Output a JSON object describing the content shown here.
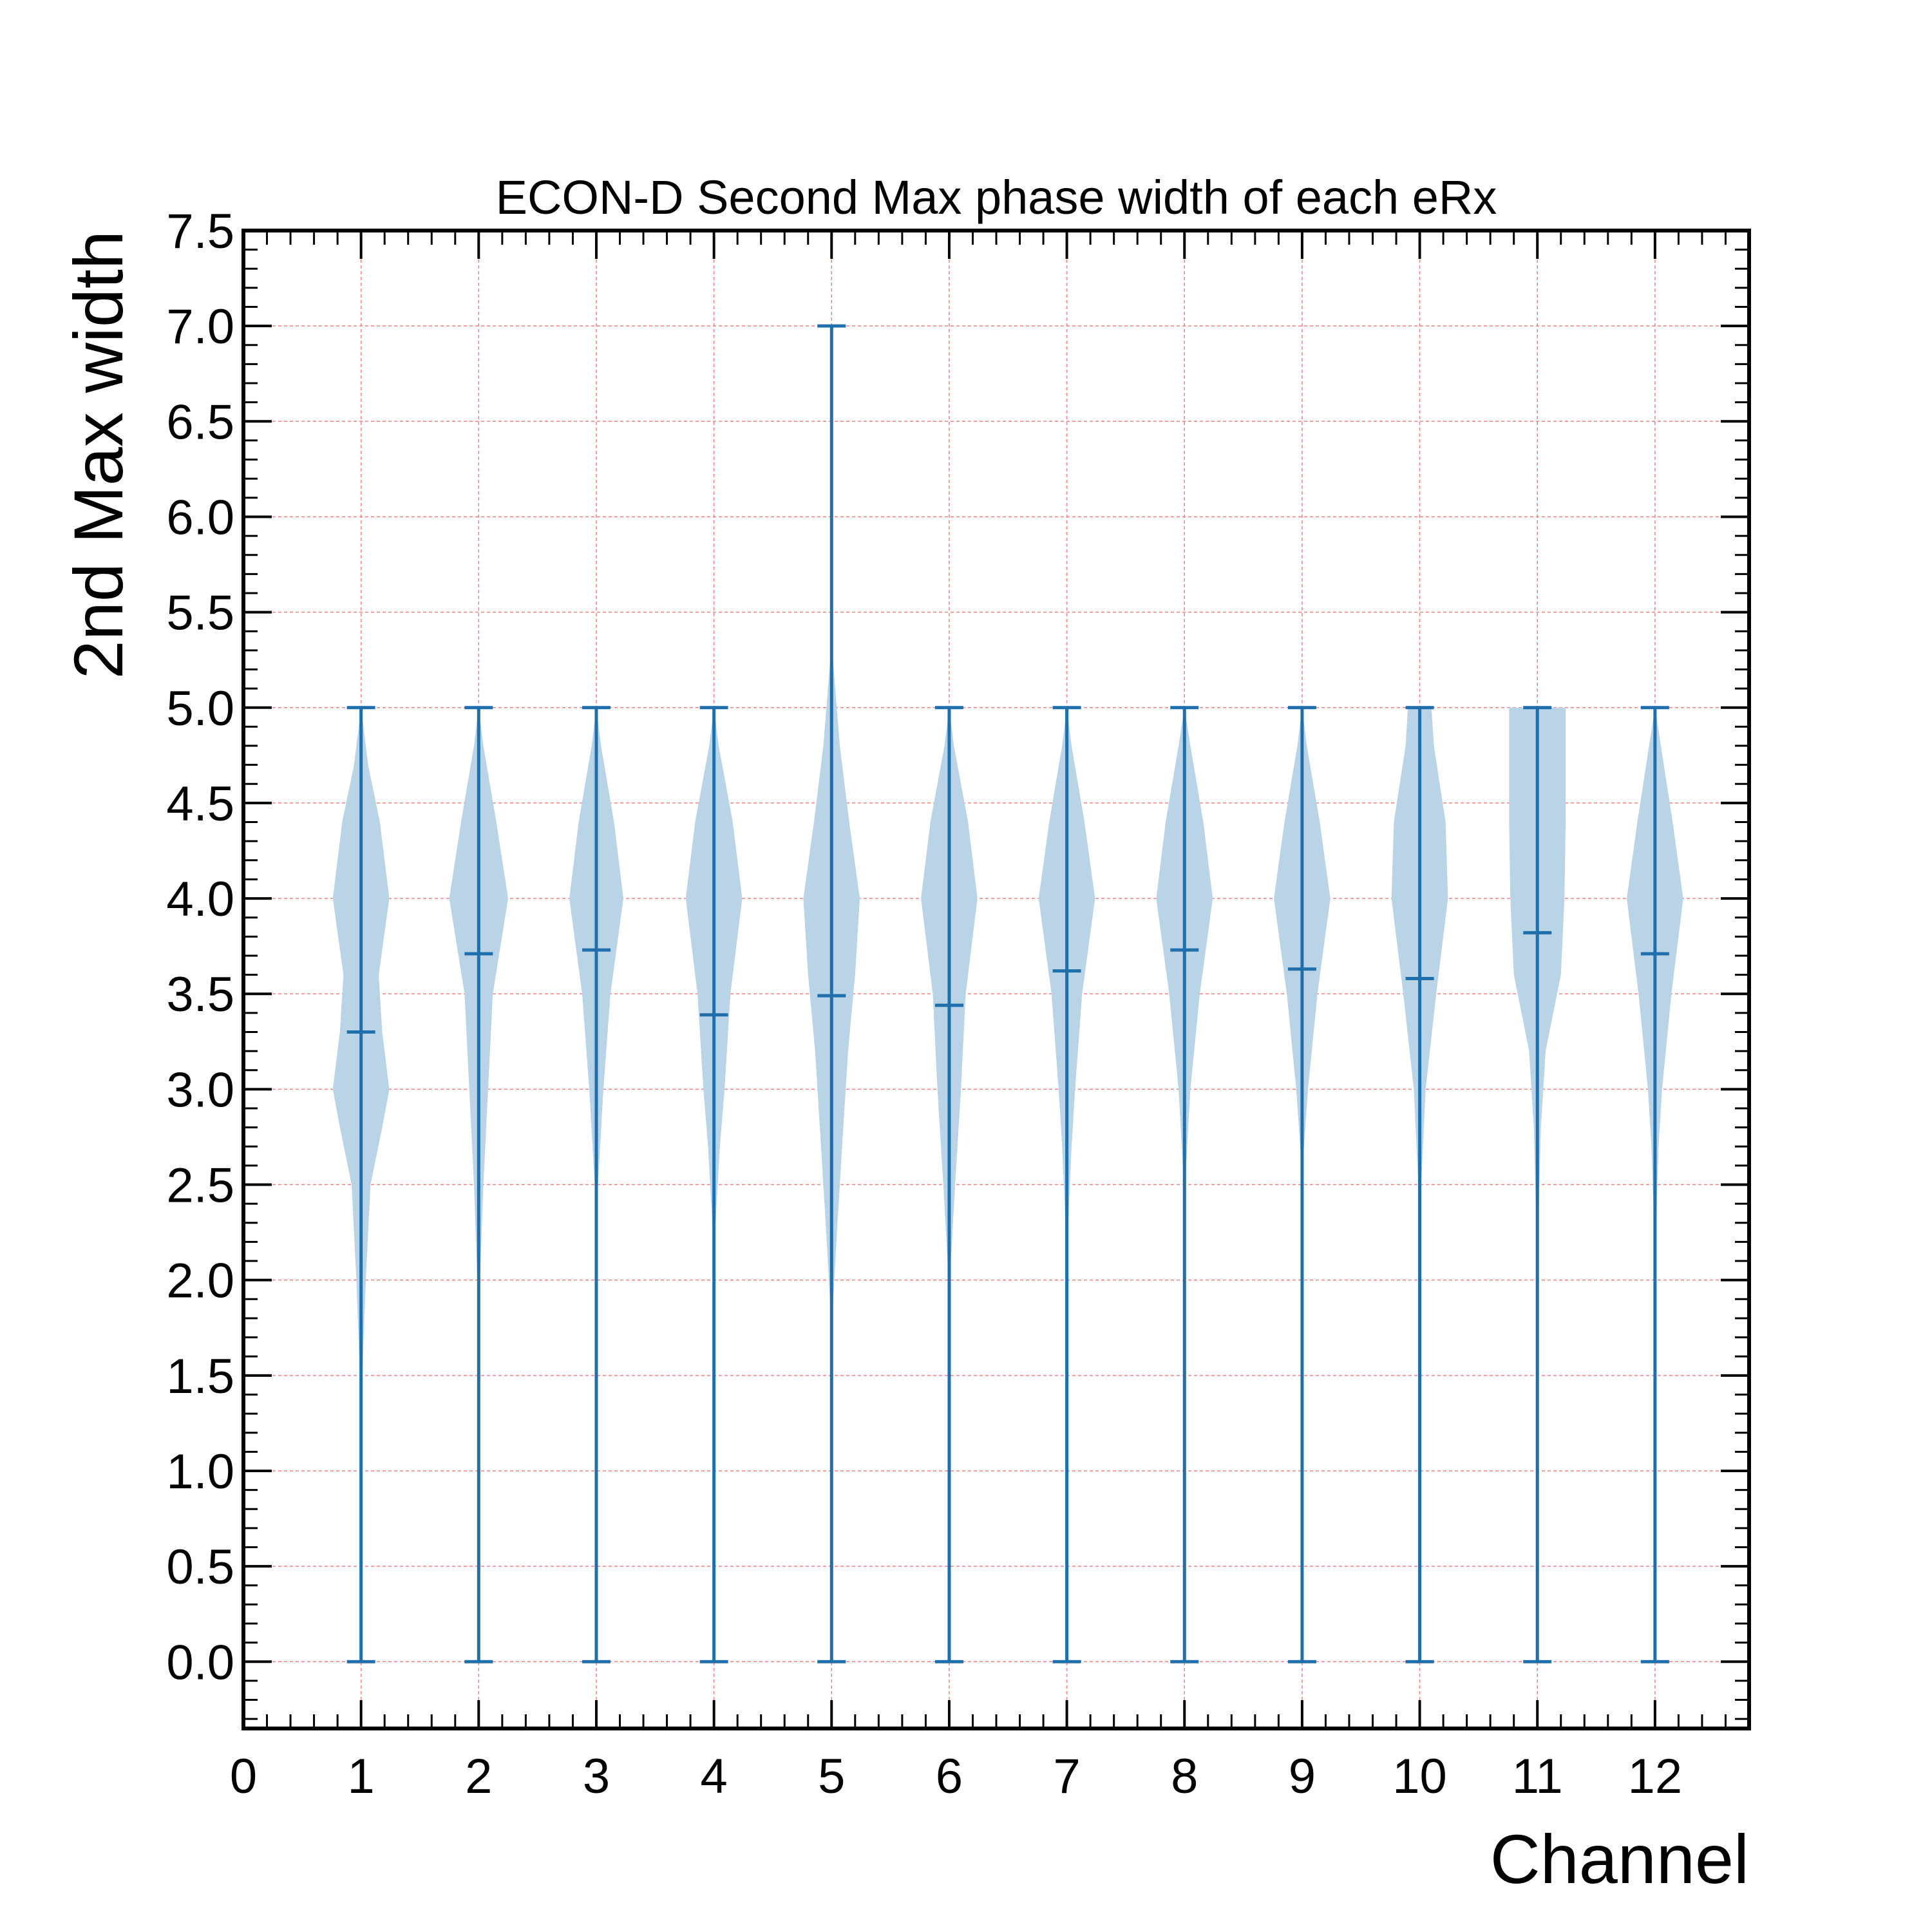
{
  "chart_data": {
    "type": "violin",
    "title": "ECON-D Second Max phase width of each eRx",
    "xlabel": "Channel",
    "ylabel": "2nd Max width",
    "xlim": [
      0,
      12.8
    ],
    "ylim": [
      -0.35,
      7.5
    ],
    "xticks": [
      0,
      1,
      2,
      3,
      4,
      5,
      6,
      7,
      8,
      9,
      10,
      11,
      12
    ],
    "yticks": [
      0.0,
      0.5,
      1.0,
      1.5,
      2.0,
      2.5,
      3.0,
      3.5,
      4.0,
      4.5,
      5.0,
      5.5,
      6.0,
      6.5,
      7.0,
      7.5
    ],
    "ytick_labels": [
      "0.0",
      "0.5",
      "1.0",
      "1.5",
      "2.0",
      "2.5",
      "3.0",
      "3.5",
      "4.0",
      "4.5",
      "5.0",
      "5.5",
      "6.0",
      "6.5",
      "7.0",
      "7.5"
    ],
    "grid": true,
    "colors": {
      "violin_fill": "#b9d3e7",
      "lines": "#1f6fad",
      "grid": "#f08080"
    },
    "series": [
      {
        "channel": 1,
        "min": 0,
        "max": 5,
        "mean": 3.3,
        "profile": [
          [
            1.5,
            0.01
          ],
          [
            2.0,
            0.04
          ],
          [
            2.5,
            0.08
          ],
          [
            2.8,
            0.18
          ],
          [
            3.0,
            0.24
          ],
          [
            3.3,
            0.18
          ],
          [
            3.6,
            0.15
          ],
          [
            4.0,
            0.24
          ],
          [
            4.4,
            0.16
          ],
          [
            4.7,
            0.06
          ],
          [
            5.0,
            0.0
          ]
        ]
      },
      {
        "channel": 2,
        "min": 0,
        "max": 5,
        "mean": 3.71,
        "profile": [
          [
            1.9,
            0.005
          ],
          [
            2.5,
            0.04
          ],
          [
            3.0,
            0.08
          ],
          [
            3.5,
            0.12
          ],
          [
            4.0,
            0.25
          ],
          [
            4.4,
            0.15
          ],
          [
            4.8,
            0.04
          ],
          [
            5.0,
            0.0
          ]
        ]
      },
      {
        "channel": 3,
        "min": 0,
        "max": 5,
        "mean": 3.73,
        "profile": [
          [
            2.4,
            0.005
          ],
          [
            3.0,
            0.06
          ],
          [
            3.5,
            0.12
          ],
          [
            4.0,
            0.23
          ],
          [
            4.4,
            0.15
          ],
          [
            4.8,
            0.04
          ],
          [
            5.0,
            0.0
          ]
        ]
      },
      {
        "channel": 4,
        "min": 0,
        "max": 5,
        "mean": 3.39,
        "profile": [
          [
            2.2,
            0.005
          ],
          [
            2.7,
            0.05
          ],
          [
            3.0,
            0.09
          ],
          [
            3.5,
            0.14
          ],
          [
            4.0,
            0.24
          ],
          [
            4.4,
            0.16
          ],
          [
            4.8,
            0.04
          ],
          [
            5.0,
            0.0
          ]
        ]
      },
      {
        "channel": 5,
        "min": 0,
        "max": 7,
        "mean": 3.49,
        "profile": [
          [
            1.8,
            0.005
          ],
          [
            2.3,
            0.05
          ],
          [
            2.8,
            0.1
          ],
          [
            3.2,
            0.14
          ],
          [
            3.6,
            0.2
          ],
          [
            4.0,
            0.24
          ],
          [
            4.4,
            0.15
          ],
          [
            4.8,
            0.07
          ],
          [
            5.3,
            0.005
          ],
          [
            5.6,
            0.0
          ]
        ]
      },
      {
        "channel": 6,
        "min": 0,
        "max": 5,
        "mean": 3.44,
        "profile": [
          [
            2.0,
            0.005
          ],
          [
            2.5,
            0.05
          ],
          [
            3.0,
            0.1
          ],
          [
            3.5,
            0.14
          ],
          [
            4.0,
            0.24
          ],
          [
            4.4,
            0.16
          ],
          [
            4.8,
            0.04
          ],
          [
            5.0,
            0.0
          ]
        ]
      },
      {
        "channel": 7,
        "min": 0,
        "max": 5,
        "mean": 3.62,
        "profile": [
          [
            2.2,
            0.005
          ],
          [
            2.7,
            0.04
          ],
          [
            3.0,
            0.07
          ],
          [
            3.5,
            0.13
          ],
          [
            4.0,
            0.24
          ],
          [
            4.4,
            0.15
          ],
          [
            4.8,
            0.04
          ],
          [
            5.0,
            0.0
          ]
        ]
      },
      {
        "channel": 8,
        "min": 0,
        "max": 5,
        "mean": 3.73,
        "profile": [
          [
            2.5,
            0.005
          ],
          [
            3.0,
            0.05
          ],
          [
            3.5,
            0.13
          ],
          [
            4.0,
            0.24
          ],
          [
            4.4,
            0.16
          ],
          [
            4.8,
            0.05
          ],
          [
            5.0,
            0.0
          ]
        ]
      },
      {
        "channel": 9,
        "min": 0,
        "max": 5,
        "mean": 3.63,
        "profile": [
          [
            2.6,
            0.005
          ],
          [
            3.0,
            0.05
          ],
          [
            3.5,
            0.13
          ],
          [
            4.0,
            0.24
          ],
          [
            4.4,
            0.15
          ],
          [
            4.8,
            0.04
          ],
          [
            5.0,
            0.0
          ]
        ]
      },
      {
        "channel": 10,
        "min": 0,
        "max": 5,
        "mean": 3.58,
        "profile": [
          [
            2.4,
            0.005
          ],
          [
            3.0,
            0.05
          ],
          [
            3.5,
            0.14
          ],
          [
            4.0,
            0.24
          ],
          [
            4.4,
            0.22
          ],
          [
            4.8,
            0.12
          ],
          [
            5.0,
            0.1
          ]
        ]
      },
      {
        "channel": 11,
        "min": 0,
        "max": 5,
        "mean": 3.82,
        "profile": [
          [
            2.2,
            0.005
          ],
          [
            2.8,
            0.03
          ],
          [
            3.2,
            0.07
          ],
          [
            3.6,
            0.2
          ],
          [
            4.0,
            0.23
          ],
          [
            4.4,
            0.24
          ],
          [
            4.8,
            0.24
          ],
          [
            5.0,
            0.24
          ]
        ]
      },
      {
        "channel": 12,
        "min": 0,
        "max": 5,
        "mean": 3.71,
        "profile": [
          [
            2.2,
            0.005
          ],
          [
            2.7,
            0.03
          ],
          [
            3.0,
            0.06
          ],
          [
            3.5,
            0.14
          ],
          [
            4.0,
            0.24
          ],
          [
            4.4,
            0.15
          ],
          [
            4.8,
            0.05
          ],
          [
            5.0,
            0.0
          ]
        ]
      }
    ]
  }
}
